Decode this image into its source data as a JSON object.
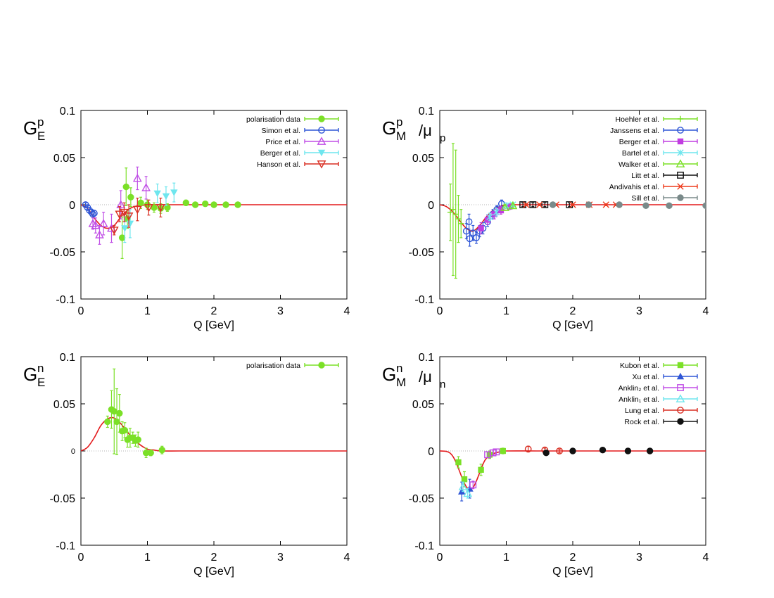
{
  "colors": {
    "fit": "#e41a1c",
    "green": "#7be027",
    "blue": "#2f56d6",
    "violet": "#c04ee6",
    "cyan": "#6ee6ee",
    "red": "#d92e22",
    "magenta": "#c03de0",
    "black": "#111111",
    "orange_red": "#ee3b1c",
    "grey": "#7a8a8a"
  },
  "chart_data": [
    {
      "id": "GEp",
      "type": "scatter",
      "ylabel": {
        "main": "G",
        "sub": "E",
        "sup": "p",
        "divisor": "",
        "divisor_sub": ""
      },
      "xlabel": "Q  [GeV]",
      "xlim": [
        0,
        4
      ],
      "ylim": [
        -0.1,
        0.1
      ],
      "xticks": [
        0,
        1,
        2,
        3,
        4
      ],
      "xtick_labels": [
        "0",
        "1",
        "2",
        "3",
        "4"
      ],
      "yticks": [
        -0.1,
        -0.05,
        0,
        0.05,
        0.1
      ],
      "ytick_labels": [
        "-0.1",
        "-0.05",
        "0",
        "0.05",
        "0.1"
      ],
      "legend_position": "top-right",
      "fit": {
        "x": [
          0,
          0.1,
          0.2,
          0.3,
          0.4,
          0.5,
          0.6,
          0.7,
          0.8,
          0.9,
          1.0,
          1.2,
          1.5,
          2,
          3,
          4
        ],
        "y": [
          0,
          -0.004,
          -0.014,
          -0.022,
          -0.025,
          -0.022,
          -0.013,
          -0.006,
          -0.002,
          -0.001,
          0,
          0,
          0,
          0,
          0,
          0
        ]
      },
      "series": [
        {
          "name": "polarisation data",
          "color": "green",
          "marker": "filled-circle",
          "points": [
            [
              0.62,
              -0.035,
              0.022
            ],
            [
              0.68,
              0.019,
              0.02
            ],
            [
              0.7,
              -0.015,
              0.01
            ],
            [
              0.75,
              0.008,
              0.01
            ],
            [
              0.9,
              0.002,
              0.006
            ],
            [
              1.0,
              0.0,
              0.005
            ],
            [
              1.1,
              -0.003,
              0.005
            ],
            [
              1.2,
              -0.004,
              0.005
            ],
            [
              1.3,
              -0.003,
              0.004
            ],
            [
              1.58,
              0.002,
              0.003
            ],
            [
              1.72,
              0.0,
              0.002
            ],
            [
              1.87,
              0.001,
              0.002
            ],
            [
              2.0,
              0.0,
              0.002
            ],
            [
              2.18,
              0.0,
              0.002
            ],
            [
              2.36,
              0.0,
              0.002
            ]
          ]
        },
        {
          "name": "Simon et al.",
          "color": "blue",
          "marker": "open-circle",
          "points": [
            [
              0.07,
              0.0,
              0.002
            ],
            [
              0.1,
              -0.003,
              0.002
            ],
            [
              0.13,
              -0.006,
              0.003
            ],
            [
              0.16,
              -0.008,
              0.003
            ],
            [
              0.18,
              -0.01,
              0.003
            ],
            [
              0.2,
              -0.009,
              0.003
            ]
          ]
        },
        {
          "name": "Price et al.",
          "color": "violet",
          "marker": "open-triangle",
          "points": [
            [
              0.18,
              -0.02,
              0.006
            ],
            [
              0.22,
              -0.022,
              0.008
            ],
            [
              0.28,
              -0.032,
              0.01
            ],
            [
              0.34,
              -0.02,
              0.012
            ],
            [
              0.46,
              -0.025,
              0.015
            ],
            [
              0.6,
              0.0,
              0.015
            ],
            [
              0.85,
              0.028,
              0.012
            ],
            [
              0.98,
              0.018,
              0.012
            ]
          ]
        },
        {
          "name": "Berger et al.",
          "color": "cyan",
          "marker": "filled-down-triangle",
          "points": [
            [
              0.66,
              -0.025,
              0.015
            ],
            [
              0.74,
              -0.02,
              0.015
            ],
            [
              1.15,
              0.012,
              0.01
            ],
            [
              1.28,
              0.009,
              0.01
            ],
            [
              1.4,
              0.013,
              0.01
            ]
          ]
        },
        {
          "name": "Hanson et al.",
          "color": "red",
          "marker": "open-down-triangle",
          "points": [
            [
              0.5,
              -0.027,
              0.005
            ],
            [
              0.58,
              -0.01,
              0.008
            ],
            [
              0.65,
              -0.008,
              0.01
            ],
            [
              0.72,
              -0.012,
              0.012
            ],
            [
              0.85,
              -0.005,
              0.012
            ],
            [
              1.02,
              -0.003,
              0.008
            ],
            [
              1.2,
              -0.003,
              0.01
            ]
          ]
        }
      ]
    },
    {
      "id": "GMp",
      "type": "scatter",
      "ylabel": {
        "main": "G",
        "sub": "M",
        "sup": "p",
        "divisor": "/μ",
        "divisor_sub": "p"
      },
      "xlabel": "Q  [GeV]",
      "xlim": [
        0,
        4
      ],
      "ylim": [
        -0.1,
        0.1
      ],
      "xticks": [
        0,
        1,
        2,
        3,
        4
      ],
      "xtick_labels": [
        "0",
        "1",
        "2",
        "3",
        "4"
      ],
      "yticks": [
        -0.1,
        -0.05,
        0,
        0.05,
        0.1
      ],
      "ytick_labels": [
        "-0.1",
        "-0.05",
        "0",
        "0.05",
        "0.1"
      ],
      "legend_position": "top-right",
      "fit": {
        "x": [
          0,
          0.1,
          0.2,
          0.3,
          0.4,
          0.5,
          0.6,
          0.7,
          0.8,
          0.9,
          1.0,
          1.2,
          1.5,
          2,
          3,
          4
        ],
        "y": [
          0,
          -0.002,
          -0.008,
          -0.017,
          -0.025,
          -0.028,
          -0.022,
          -0.013,
          -0.006,
          -0.002,
          0,
          0,
          0,
          0,
          0,
          0
        ]
      },
      "series": [
        {
          "name": "Hoehler   et al.",
          "color": "green",
          "marker": "plus",
          "points": [
            [
              0.16,
              -0.008,
              0.03
            ],
            [
              0.2,
              -0.005,
              0.07
            ],
            [
              0.24,
              -0.01,
              0.068
            ],
            [
              0.28,
              -0.015,
              0.025
            ],
            [
              0.32,
              -0.02,
              0.015
            ]
          ]
        },
        {
          "name": "Janssens  et al.",
          "color": "blue",
          "marker": "open-circle",
          "points": [
            [
              0.4,
              -0.028,
              0.008
            ],
            [
              0.44,
              -0.018,
              0.008
            ],
            [
              0.45,
              -0.036,
              0.008
            ],
            [
              0.5,
              -0.03,
              0.008
            ],
            [
              0.55,
              -0.035,
              0.006
            ],
            [
              0.6,
              -0.028,
              0.006
            ],
            [
              0.65,
              -0.025,
              0.006
            ],
            [
              0.72,
              -0.018,
              0.005
            ],
            [
              0.8,
              -0.01,
              0.005
            ],
            [
              0.86,
              -0.005,
              0.004
            ],
            [
              0.93,
              0.001,
              0.004
            ]
          ]
        },
        {
          "name": "Berger     et al.",
          "color": "magenta",
          "marker": "filled-square",
          "points": [
            [
              0.62,
              -0.025,
              0.006
            ],
            [
              0.72,
              -0.016,
              0.005
            ],
            [
              0.82,
              -0.01,
              0.005
            ],
            [
              0.92,
              -0.006,
              0.004
            ],
            [
              1.05,
              -0.002,
              0.003
            ]
          ]
        },
        {
          "name": "Bartel     et al.",
          "color": "cyan",
          "marker": "asterisk",
          "points": [
            [
              0.75,
              -0.013,
              0.004
            ],
            [
              0.85,
              -0.008,
              0.004
            ],
            [
              1.0,
              -0.001,
              0.003
            ],
            [
              1.1,
              0.0,
              0.002
            ]
          ]
        },
        {
          "name": "Walker     et al.",
          "color": "green",
          "marker": "open-triangle",
          "points": [
            [
              0.98,
              -0.003,
              0.003
            ],
            [
              1.1,
              -0.001,
              0.002
            ]
          ]
        },
        {
          "name": "Litt           et al.",
          "color": "black",
          "marker": "open-square",
          "points": [
            [
              1.25,
              0.0,
              0.002
            ],
            [
              1.4,
              0.0,
              0.002
            ],
            [
              1.58,
              0.0,
              0.002
            ],
            [
              1.95,
              0.0,
              0.002
            ]
          ]
        },
        {
          "name": "Andivahis et al.",
          "color": "orange_red",
          "marker": "cross",
          "points": [
            [
              1.3,
              0.0,
              0.001
            ],
            [
              1.5,
              0.0,
              0.001
            ],
            [
              1.75,
              0.0,
              0.001
            ],
            [
              2.0,
              0.0,
              0.001
            ],
            [
              2.25,
              0.0,
              0.001
            ],
            [
              2.5,
              0.0,
              0.001
            ],
            [
              2.65,
              0.0,
              0.001
            ]
          ]
        },
        {
          "name": "Sill          et al.",
          "color": "grey",
          "marker": "filled-circle",
          "points": [
            [
              1.7,
              0.0,
              0.001
            ],
            [
              2.24,
              0.0,
              0.001
            ],
            [
              2.7,
              0.0,
              0.001
            ],
            [
              3.1,
              -0.001,
              0.001
            ],
            [
              3.45,
              -0.001,
              0.001
            ],
            [
              4.0,
              -0.001,
              0.001
            ]
          ]
        }
      ]
    },
    {
      "id": "GEn",
      "type": "scatter",
      "ylabel": {
        "main": "G",
        "sub": "E",
        "sup": "n",
        "divisor": "",
        "divisor_sub": ""
      },
      "xlabel": "Q  [GeV]",
      "xlim": [
        0,
        4
      ],
      "ylim": [
        -0.1,
        0.1
      ],
      "xticks": [
        0,
        1,
        2,
        3,
        4
      ],
      "xtick_labels": [
        "0",
        "1",
        "2",
        "3",
        "4"
      ],
      "yticks": [
        -0.1,
        -0.05,
        0,
        0.05,
        0.1
      ],
      "ytick_labels": [
        "-0.1",
        "-0.05",
        "0",
        "0.05",
        "0.1"
      ],
      "legend_position": "top-right",
      "fit": {
        "x": [
          0,
          0.1,
          0.2,
          0.3,
          0.4,
          0.5,
          0.6,
          0.7,
          0.8,
          0.9,
          1.0,
          1.1,
          1.2,
          1.5,
          2,
          3,
          4
        ],
        "y": [
          0,
          0.004,
          0.014,
          0.027,
          0.034,
          0.035,
          0.029,
          0.02,
          0.012,
          0.006,
          0.002,
          0.001,
          0,
          0,
          0,
          0,
          0
        ]
      },
      "series": [
        {
          "name": "polarisation data",
          "color": "green",
          "marker": "filled-circle",
          "points": [
            [
              0.4,
              0.031,
              0.006
            ],
            [
              0.46,
              0.044,
              0.02
            ],
            [
              0.5,
              0.042,
              0.045
            ],
            [
              0.54,
              0.031,
              0.035
            ],
            [
              0.58,
              0.04,
              0.02
            ],
            [
              0.62,
              0.021,
              0.01
            ],
            [
              0.66,
              0.022,
              0.008
            ],
            [
              0.7,
              0.012,
              0.008
            ],
            [
              0.74,
              0.014,
              0.01
            ],
            [
              0.78,
              0.014,
              0.006
            ],
            [
              0.82,
              0.011,
              0.006
            ],
            [
              0.86,
              0.012,
              0.008
            ],
            [
              0.98,
              -0.002,
              0.005
            ],
            [
              1.05,
              -0.002,
              0.003
            ],
            [
              1.22,
              0.001,
              0.004
            ]
          ]
        }
      ]
    },
    {
      "id": "GMn",
      "type": "scatter",
      "ylabel": {
        "main": "G",
        "sub": "M",
        "sup": "n",
        "divisor": "/μ",
        "divisor_sub": "n"
      },
      "xlabel": "Q  [GeV]",
      "xlim": [
        0,
        4
      ],
      "ylim": [
        -0.1,
        0.1
      ],
      "xticks": [
        0,
        1,
        2,
        3,
        4
      ],
      "xtick_labels": [
        "0",
        "1",
        "2",
        "3",
        "4"
      ],
      "yticks": [
        -0.1,
        -0.05,
        0,
        0.05,
        0.1
      ],
      "ytick_labels": [
        "-0.1",
        "-0.05",
        "0",
        "0.05",
        "0.1"
      ],
      "legend_position": "top-right",
      "fit": {
        "x": [
          0,
          0.1,
          0.15,
          0.2,
          0.25,
          0.3,
          0.35,
          0.4,
          0.45,
          0.5,
          0.55,
          0.6,
          0.65,
          0.7,
          0.8,
          0.9,
          1.0,
          1.5,
          2,
          3,
          4
        ],
        "y": [
          0,
          -0.0005,
          -0.002,
          -0.006,
          -0.013,
          -0.022,
          -0.031,
          -0.038,
          -0.041,
          -0.039,
          -0.032,
          -0.023,
          -0.014,
          -0.008,
          -0.003,
          -0.001,
          0,
          0,
          0,
          0,
          0
        ]
      },
      "series": [
        {
          "name": "Kubon et al.",
          "color": "green",
          "marker": "filled-square",
          "points": [
            [
              0.28,
              -0.012,
              0.006
            ],
            [
              0.37,
              -0.03,
              0.008
            ],
            [
              0.62,
              -0.02,
              0.006
            ],
            [
              0.75,
              -0.004,
              0.004
            ],
            [
              0.95,
              0.0,
              0.003
            ]
          ]
        },
        {
          "name": "Xu et al.",
          "color": "blue",
          "marker": "filled-triangle",
          "points": [
            [
              0.33,
              -0.043,
              0.01
            ],
            [
              0.45,
              -0.04,
              0.01
            ]
          ]
        },
        {
          "name": "Anklin₂ et al.",
          "color": "violet",
          "marker": "open-square",
          "points": [
            [
              0.5,
              -0.036,
              0.004
            ],
            [
              0.72,
              -0.004,
              0.003
            ],
            [
              0.8,
              -0.002,
              0.003
            ],
            [
              0.85,
              -0.001,
              0.003
            ]
          ]
        },
        {
          "name": "Anklin₁ et al.",
          "color": "cyan",
          "marker": "open-triangle",
          "points": [
            [
              0.35,
              -0.038,
              0.005
            ],
            [
              0.42,
              -0.045,
              0.005
            ]
          ]
        },
        {
          "name": "Lung et al.",
          "color": "red",
          "marker": "open-circle",
          "points": [
            [
              1.33,
              0.002,
              0.003
            ],
            [
              1.58,
              0.001,
              0.002
            ],
            [
              1.8,
              0.0,
              0.002
            ]
          ]
        },
        {
          "name": "Rock et al.",
          "color": "black",
          "marker": "filled-circle",
          "points": [
            [
              1.6,
              -0.002,
              0.001
            ],
            [
              2.0,
              0.0,
              0.001
            ],
            [
              2.45,
              0.001,
              0.001
            ],
            [
              2.83,
              0.0,
              0.001
            ],
            [
              3.16,
              0.0,
              0.001
            ]
          ]
        }
      ]
    }
  ]
}
